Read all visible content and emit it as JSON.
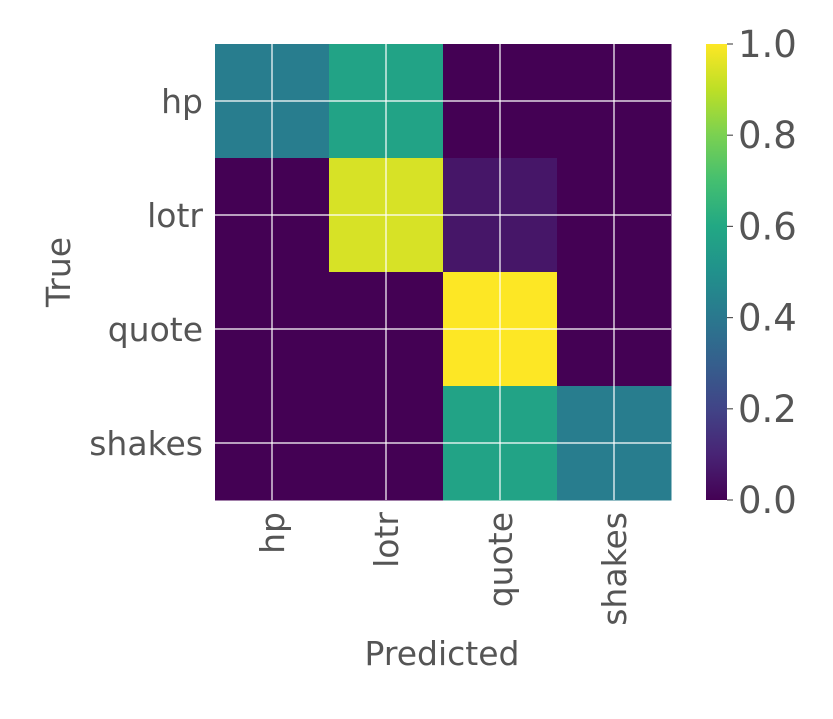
{
  "chart_data": {
    "type": "heatmap",
    "title": "",
    "xlabel": "Predicted",
    "ylabel": "True",
    "x_categories": [
      "hp",
      "lotr",
      "quote",
      "shakes"
    ],
    "y_categories": [
      "hp",
      "lotr",
      "quote",
      "shakes"
    ],
    "values": [
      [
        0.42,
        0.58,
        0.0,
        0.0
      ],
      [
        0.0,
        0.94,
        0.06,
        0.0
      ],
      [
        0.0,
        0.0,
        1.0,
        0.0
      ],
      [
        0.0,
        0.0,
        0.58,
        0.42
      ]
    ],
    "colormap": "viridis",
    "colorbar": {
      "range": [
        0.0,
        1.0
      ],
      "ticks": [
        "0.0",
        "0.2",
        "0.4",
        "0.6",
        "0.8",
        "1.0"
      ]
    },
    "grid": true,
    "colors": {
      "text": "#555555",
      "grid": "#ffffff"
    }
  }
}
